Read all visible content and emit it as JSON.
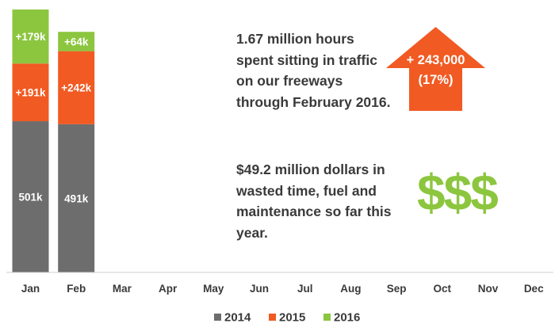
{
  "chart_data": {
    "type": "bar",
    "stacked": true,
    "categories": [
      "Jan",
      "Feb",
      "Mar",
      "Apr",
      "May",
      "Jun",
      "Jul",
      "Aug",
      "Sep",
      "Oct",
      "Nov",
      "Dec"
    ],
    "series": [
      {
        "name": "2014",
        "color": "#6d6d6d",
        "values": [
          501,
          491,
          null,
          null,
          null,
          null,
          null,
          null,
          null,
          null,
          null,
          null
        ],
        "labels": [
          "501k",
          "491k"
        ]
      },
      {
        "name": "2015",
        "color": "#f15a22",
        "values": [
          191,
          242,
          null,
          null,
          null,
          null,
          null,
          null,
          null,
          null,
          null,
          null
        ],
        "labels": [
          "+191k",
          "+242k"
        ]
      },
      {
        "name": "2016",
        "color": "#8cc63f",
        "values": [
          179,
          64,
          null,
          null,
          null,
          null,
          null,
          null,
          null,
          null,
          null,
          null
        ],
        "labels": [
          "+179k",
          "+64k"
        ]
      }
    ],
    "units": "thousand hours",
    "ylim": [
      0,
      871
    ],
    "grid": false,
    "legend_position": "bottom"
  },
  "annotations": {
    "note_1": "1.67 million hours spent sitting in traffic on our freeways through February 2016.",
    "note_2": "$49.2 million dollars in wasted time, fuel and maintenance so far this year.",
    "arrow_line_1": "+ 243,000",
    "arrow_line_2": "(17%)",
    "arrow_color": "#f15a22",
    "money_symbol": "$$$",
    "money_color": "#8cc63f"
  }
}
